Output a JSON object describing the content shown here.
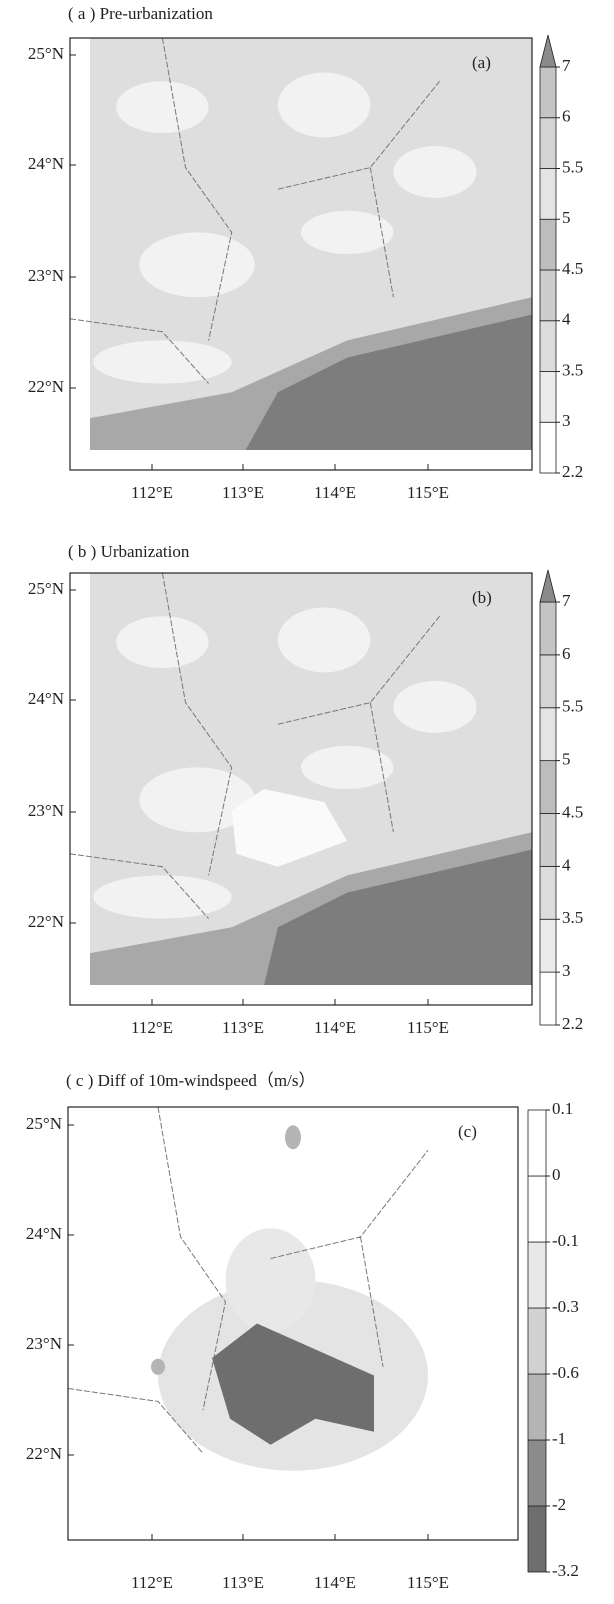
{
  "panels": [
    {
      "title": "( a ) Pre-urbanization",
      "label": "(a)",
      "yticks": [
        "25°N",
        "24°N",
        "23°N",
        "22°N"
      ],
      "xticks": [
        "112°E",
        "113°E",
        "114°E",
        "115°E"
      ],
      "colorbar": {
        "levels": [
          2.2,
          3,
          3.5,
          4,
          4.5,
          5,
          5.5,
          6,
          7
        ],
        "colors": [
          "#ffffff",
          "#ebebeb",
          "#dcdcdc",
          "#cdcdcd",
          "#bdbdbd",
          "#e4e4e4",
          "#d4d4d4",
          "#c4c4c4"
        ],
        "extend_color": "#8a8a8a"
      }
    },
    {
      "title": "( b ) Urbanization",
      "label": "(b)",
      "yticks": [
        "25°N",
        "24°N",
        "23°N",
        "22°N"
      ],
      "xticks": [
        "112°E",
        "113°E",
        "114°E",
        "115°E"
      ],
      "colorbar": {
        "levels": [
          2.2,
          3,
          3.5,
          4,
          4.5,
          5,
          5.5,
          6,
          7
        ],
        "colors": [
          "#ffffff",
          "#ebebeb",
          "#dcdcdc",
          "#cdcdcd",
          "#bdbdbd",
          "#e4e4e4",
          "#d4d4d4",
          "#c4c4c4"
        ],
        "extend_color": "#8a8a8a"
      }
    },
    {
      "title": "( c ) Diff of 10m-windspeed（m/s）",
      "label": "(c)",
      "yticks": [
        "25°N",
        "24°N",
        "23°N",
        "22°N"
      ],
      "xticks": [
        "112°E",
        "113°E",
        "114°E",
        "115°E"
      ],
      "colorbar": {
        "levels": [
          -3.2,
          -2,
          -1,
          -0.6,
          -0.3,
          -0.1,
          0,
          0.1
        ],
        "colors": [
          "#6e6e6e",
          "#8c8c8c",
          "#b4b4b4",
          "#d2d2d2",
          "#e8e8e8",
          "#ffffff",
          "#ffffff"
        ]
      }
    }
  ]
}
